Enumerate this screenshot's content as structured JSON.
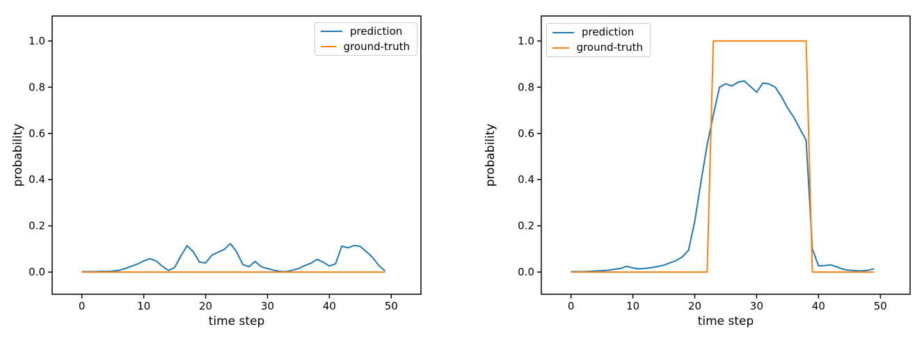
{
  "figure": {
    "background": "#ffffff",
    "text_color": "#000000",
    "axis_color": "#000000"
  },
  "legend": {
    "items": [
      {
        "label": "prediction",
        "color": "#1f77b4"
      },
      {
        "label": "ground-truth",
        "color": "#ff7f0e"
      }
    ]
  },
  "chart_data": [
    {
      "type": "line",
      "panel": "left",
      "title": "",
      "xlabel": "time step",
      "ylabel": "probability",
      "x_ticks": [
        0,
        10,
        20,
        30,
        40,
        50
      ],
      "y_ticks": [
        0.0,
        0.2,
        0.4,
        0.6,
        0.8,
        1.0
      ],
      "xlim": [
        -4.8,
        54.8
      ],
      "ylim": [
        -0.096,
        1.108
      ],
      "grid": false,
      "legend_position": "upper right",
      "x": [
        0,
        1,
        2,
        3,
        4,
        5,
        6,
        7,
        8,
        9,
        10,
        11,
        12,
        13,
        14,
        15,
        16,
        17,
        18,
        19,
        20,
        21,
        22,
        23,
        24,
        25,
        26,
        27,
        28,
        29,
        30,
        31,
        32,
        33,
        34,
        35,
        36,
        37,
        38,
        39,
        40,
        41,
        42,
        43,
        44,
        45,
        46,
        47,
        48,
        49
      ],
      "series": [
        {
          "name": "prediction",
          "color": "#1f77b4",
          "values": [
            0.002,
            0.002,
            0.002,
            0.003,
            0.003,
            0.004,
            0.008,
            0.015,
            0.025,
            0.035,
            0.048,
            0.058,
            0.048,
            0.025,
            0.007,
            0.02,
            0.07,
            0.114,
            0.088,
            0.043,
            0.04,
            0.073,
            0.086,
            0.098,
            0.123,
            0.088,
            0.033,
            0.023,
            0.046,
            0.023,
            0.015,
            0.008,
            0.003,
            0.002,
            0.008,
            0.015,
            0.028,
            0.038,
            0.055,
            0.043,
            0.026,
            0.036,
            0.112,
            0.105,
            0.115,
            0.111,
            0.088,
            0.063,
            0.028,
            0.005
          ]
        },
        {
          "name": "ground-truth",
          "color": "#ff7f0e",
          "values": [
            0,
            0,
            0,
            0,
            0,
            0,
            0,
            0,
            0,
            0,
            0,
            0,
            0,
            0,
            0,
            0,
            0,
            0,
            0,
            0,
            0,
            0,
            0,
            0,
            0,
            0,
            0,
            0,
            0,
            0,
            0,
            0,
            0,
            0,
            0,
            0,
            0,
            0,
            0,
            0,
            0,
            0,
            0,
            0,
            0,
            0,
            0,
            0,
            0,
            0
          ]
        }
      ]
    },
    {
      "type": "line",
      "panel": "right",
      "title": "",
      "xlabel": "time step",
      "ylabel": "probability",
      "x_ticks": [
        0,
        10,
        20,
        30,
        40,
        50
      ],
      "y_ticks": [
        0.0,
        0.2,
        0.4,
        0.6,
        0.8,
        1.0
      ],
      "xlim": [
        -4.8,
        54.8
      ],
      "ylim": [
        -0.096,
        1.108
      ],
      "grid": false,
      "legend_position": "upper left",
      "x": [
        0,
        1,
        2,
        3,
        4,
        5,
        6,
        7,
        8,
        9,
        10,
        11,
        12,
        13,
        14,
        15,
        16,
        17,
        18,
        19,
        20,
        21,
        22,
        23,
        24,
        25,
        26,
        27,
        28,
        29,
        30,
        31,
        32,
        33,
        34,
        35,
        36,
        37,
        38,
        39,
        40,
        41,
        42,
        43,
        44,
        45,
        46,
        47,
        48,
        49
      ],
      "series": [
        {
          "name": "prediction",
          "color": "#1f77b4",
          "values": [
            0.002,
            0.002,
            0.002,
            0.003,
            0.005,
            0.006,
            0.008,
            0.012,
            0.016,
            0.025,
            0.018,
            0.014,
            0.016,
            0.019,
            0.024,
            0.03,
            0.04,
            0.05,
            0.066,
            0.095,
            0.22,
            0.39,
            0.55,
            0.68,
            0.8,
            0.815,
            0.805,
            0.822,
            0.827,
            0.803,
            0.778,
            0.818,
            0.814,
            0.8,
            0.76,
            0.71,
            0.67,
            0.62,
            0.57,
            0.1,
            0.027,
            0.028,
            0.031,
            0.022,
            0.012,
            0.008,
            0.006,
            0.005,
            0.008,
            0.014
          ]
        },
        {
          "name": "ground-truth",
          "color": "#ff7f0e",
          "values": [
            0,
            0,
            0,
            0,
            0,
            0,
            0,
            0,
            0,
            0,
            0,
            0,
            0,
            0,
            0,
            0,
            0,
            0,
            0,
            0,
            0,
            0,
            0,
            1,
            1,
            1,
            1,
            1,
            1,
            1,
            1,
            1,
            1,
            1,
            1,
            1,
            1,
            1,
            1,
            0,
            0,
            0,
            0,
            0,
            0,
            0,
            0,
            0,
            0,
            0
          ]
        }
      ]
    }
  ]
}
